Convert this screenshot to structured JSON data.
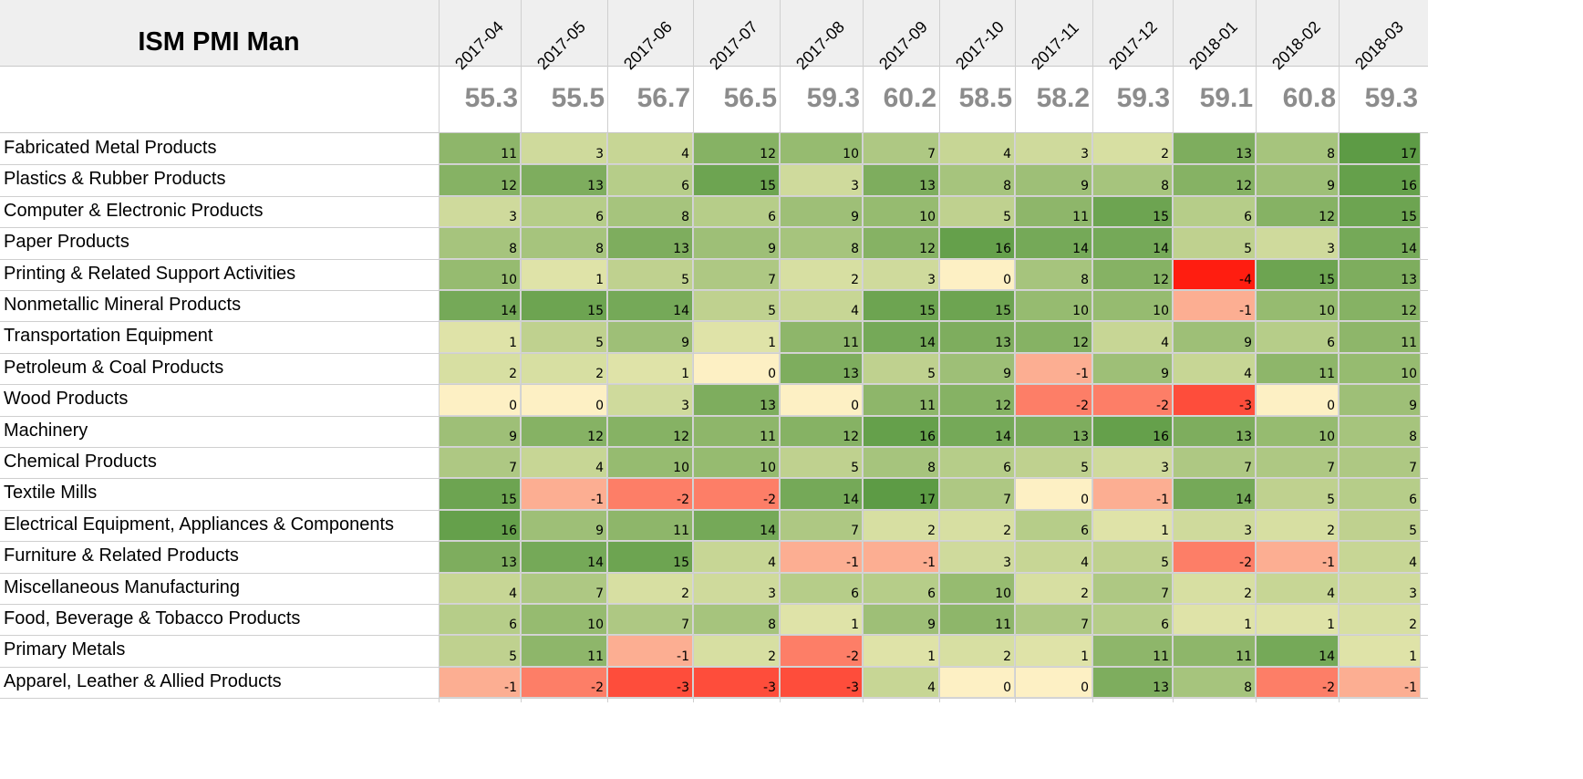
{
  "chart_data": {
    "type": "heatmap",
    "title": "ISM PMI Man",
    "columns": [
      "2017-04",
      "2017-05",
      "2017-06",
      "2017-07",
      "2017-08",
      "2017-09",
      "2017-10",
      "2017-11",
      "2017-12",
      "2018-01",
      "2018-02",
      "2018-03"
    ],
    "pmi": [
      "55.3",
      "55.5",
      "56.7",
      "56.5",
      "59.3",
      "60.2",
      "58.5",
      "58.2",
      "59.3",
      "59.1",
      "60.8",
      "59.3"
    ],
    "rows": [
      {
        "label": "Fabricated Metal Products",
        "values": [
          11,
          3,
          4,
          12,
          10,
          7,
          4,
          3,
          2,
          13,
          8,
          17
        ]
      },
      {
        "label": "Plastics & Rubber Products",
        "values": [
          12,
          13,
          6,
          15,
          3,
          13,
          8,
          9,
          8,
          12,
          9,
          16
        ]
      },
      {
        "label": "Computer & Electronic Products",
        "values": [
          3,
          6,
          8,
          6,
          9,
          10,
          5,
          11,
          15,
          6,
          12,
          15
        ]
      },
      {
        "label": "Paper Products",
        "values": [
          8,
          8,
          13,
          9,
          8,
          12,
          16,
          14,
          14,
          5,
          3,
          14
        ]
      },
      {
        "label": "Printing & Related Support Activities",
        "values": [
          10,
          1,
          5,
          7,
          2,
          3,
          0,
          8,
          12,
          -4,
          15,
          13
        ]
      },
      {
        "label": "Nonmetallic Mineral Products",
        "values": [
          14,
          15,
          14,
          5,
          4,
          15,
          15,
          10,
          10,
          -1,
          10,
          12
        ]
      },
      {
        "label": "Transportation Equipment",
        "values": [
          1,
          5,
          9,
          1,
          11,
          14,
          13,
          12,
          4,
          9,
          6,
          11
        ]
      },
      {
        "label": "Petroleum & Coal Products",
        "values": [
          2,
          2,
          1,
          0,
          13,
          5,
          9,
          -1,
          9,
          4,
          11,
          10
        ]
      },
      {
        "label": "Wood Products",
        "values": [
          0,
          0,
          3,
          13,
          0,
          11,
          12,
          -2,
          -2,
          -3,
          0,
          9
        ]
      },
      {
        "label": "Machinery",
        "values": [
          9,
          12,
          12,
          11,
          12,
          16,
          14,
          13,
          16,
          13,
          10,
          8
        ]
      },
      {
        "label": "Chemical Products",
        "values": [
          7,
          4,
          10,
          10,
          5,
          8,
          6,
          5,
          3,
          7,
          7,
          7
        ]
      },
      {
        "label": "Textile Mills",
        "values": [
          15,
          -1,
          -2,
          -2,
          14,
          17,
          7,
          0,
          -1,
          14,
          5,
          6
        ]
      },
      {
        "label": "Electrical Equipment, Appliances & Components",
        "values": [
          16,
          9,
          11,
          14,
          7,
          2,
          2,
          6,
          1,
          3,
          2,
          5
        ]
      },
      {
        "label": "Furniture & Related Products",
        "values": [
          13,
          14,
          15,
          4,
          -1,
          -1,
          3,
          4,
          5,
          -2,
          -1,
          4
        ]
      },
      {
        "label": "Miscellaneous Manufacturing",
        "values": [
          4,
          7,
          2,
          3,
          6,
          6,
          10,
          2,
          7,
          2,
          4,
          3
        ]
      },
      {
        "label": "Food, Beverage & Tobacco Products",
        "values": [
          6,
          10,
          7,
          8,
          1,
          9,
          11,
          7,
          6,
          1,
          1,
          2
        ]
      },
      {
        "label": "Primary Metals",
        "values": [
          5,
          11,
          -1,
          2,
          -2,
          1,
          2,
          1,
          11,
          11,
          14,
          1
        ]
      },
      {
        "label": "Apparel, Leather & Allied Products",
        "values": [
          -1,
          -2,
          -3,
          -3,
          -3,
          4,
          0,
          0,
          13,
          8,
          -2,
          -1
        ]
      }
    ],
    "colors": {
      "zero": "#fdf0c4",
      "low_positive": "#dfe3a8",
      "high_positive": "#5d9b45",
      "low_negative": "#fcae92",
      "high_negative": "#ff1d10"
    }
  }
}
